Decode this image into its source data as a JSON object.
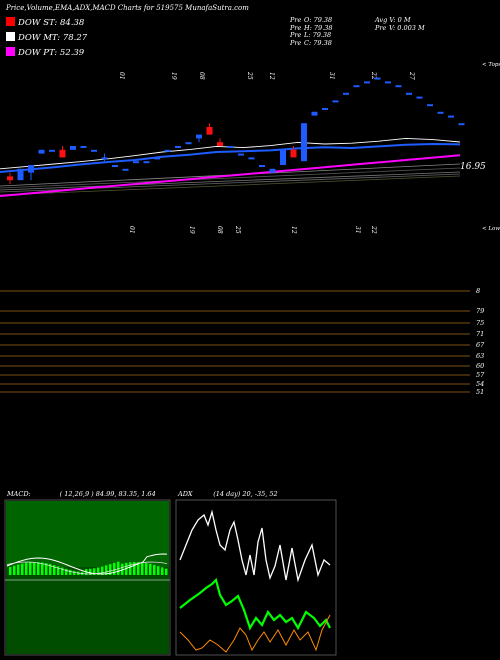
{
  "page_title": "Price,Volume,EMA,ADX,MACD Charts for 519575 MunafaSutra.com",
  "legend": [
    {
      "label": "DOW ST: 84.38",
      "color": "#ff0000"
    },
    {
      "label": "DOW MT: 78.27",
      "color": "#ffffff"
    },
    {
      "label": "DOW PT: 52.39",
      "color": "#ff00ff"
    }
  ],
  "ohlc": {
    "open": "O: 79.38",
    "high": "H: 79.38",
    "low": "L: 79.38",
    "close": "C: 79.38",
    "prefix": "Pre",
    "avg_vol": "Avg V: 0  M",
    "vol": "V: 0.003 M"
  },
  "colors": {
    "up": "#1e5cff",
    "down": "#ff1010",
    "ema_blue": "#1e5cff",
    "ema_magenta": "#ff00ff",
    "adx_green": "#00ff00",
    "adx_orange": "#ff8c00"
  },
  "chart_data": [
    {
      "type": "line",
      "panel": "upper-ema",
      "upper_label": "< Tops",
      "last_label": "16.95",
      "top_tick_labels": [
        "01",
        "19",
        "08",
        "25",
        "12",
        "31",
        "22",
        "27"
      ],
      "series": [
        {
          "color": "blue",
          "values": [
            12.0,
            12.6,
            13.2,
            13.9,
            14.5,
            15.0,
            15.8,
            16.3,
            17.0,
            17.2,
            17.4,
            17.9,
            18.2,
            18.0,
            18.4,
            18.8,
            19.0,
            18.9
          ]
        },
        {
          "color": "white",
          "values": [
            12.8,
            13.4,
            14.0,
            14.6,
            15.3,
            16.1,
            17.0,
            17.6,
            18.4,
            18.1,
            18.6,
            19.4,
            19.0,
            19.2,
            19.7,
            20.4,
            20.1,
            19.5
          ]
        },
        {
          "color": "magenta",
          "values": [
            6.0,
            6.6,
            7.2,
            7.8,
            8.4,
            9.0,
            9.6,
            10.2,
            10.8,
            11.4,
            12.0,
            12.6,
            13.2,
            13.8,
            14.4,
            15.0,
            15.6,
            16.2
          ]
        }
      ]
    },
    {
      "type": "candlestick",
      "panel": "price",
      "upper_label": "< Lows",
      "top_tick_labels": [
        "01",
        "19",
        "08",
        "25",
        "12",
        "31",
        "22",
        "27"
      ],
      "y_levels": [
        "8",
        "79",
        "75",
        "71",
        "67",
        "63",
        "60",
        "57",
        "54",
        "51"
      ],
      "ylim": [
        50,
        99
      ],
      "bars": [
        [
          1,
          72,
          73,
          70,
          71
        ],
        [
          2,
          71,
          74,
          72,
          74
        ],
        [
          3,
          73,
          75,
          71,
          75
        ],
        [
          4,
          78,
          79,
          78,
          79
        ],
        [
          5,
          79,
          79,
          79,
          79
        ],
        [
          6,
          79,
          80,
          77,
          77
        ],
        [
          7,
          79,
          80,
          79,
          80
        ],
        [
          8,
          80,
          80,
          80,
          80
        ],
        [
          9,
          79,
          79,
          79,
          79
        ],
        [
          10,
          77,
          78,
          76,
          77
        ],
        [
          11,
          75,
          75,
          75,
          75
        ],
        [
          12,
          74,
          74,
          74,
          74
        ],
        [
          13,
          76,
          76,
          76,
          76
        ],
        [
          14,
          76,
          76,
          76,
          76
        ],
        [
          15,
          77,
          77,
          77,
          77
        ],
        [
          16,
          79,
          79,
          79,
          79
        ],
        [
          17,
          80,
          80,
          80,
          80
        ],
        [
          18,
          81,
          81,
          81,
          81
        ],
        [
          19,
          82,
          83,
          81,
          83
        ],
        [
          20,
          85,
          86,
          83,
          83
        ],
        [
          21,
          81,
          82,
          80,
          80
        ],
        [
          22,
          80,
          80,
          80,
          80
        ],
        [
          23,
          78,
          78,
          78,
          78
        ],
        [
          24,
          77,
          77,
          77,
          77
        ],
        [
          25,
          75,
          75,
          75,
          75
        ],
        [
          26,
          73,
          74,
          73,
          74
        ],
        [
          27,
          75,
          79,
          75,
          79
        ],
        [
          28,
          79,
          80,
          77,
          77
        ],
        [
          29,
          76,
          86,
          76,
          86
        ],
        [
          30,
          88,
          89,
          88,
          89
        ],
        [
          31,
          90,
          90,
          90,
          90
        ],
        [
          32,
          92,
          92,
          92,
          92
        ],
        [
          33,
          94,
          94,
          94,
          94
        ],
        [
          34,
          96,
          96,
          96,
          96
        ],
        [
          35,
          97,
          97,
          97,
          97
        ],
        [
          36,
          98,
          98,
          98,
          98
        ],
        [
          37,
          97,
          97,
          97,
          97
        ],
        [
          38,
          96,
          96,
          96,
          96
        ],
        [
          39,
          94,
          94,
          94,
          94
        ],
        [
          40,
          93,
          93,
          93,
          93
        ],
        [
          41,
          91,
          91,
          91,
          91
        ],
        [
          42,
          89,
          89,
          89,
          89
        ],
        [
          43,
          88,
          88,
          88,
          88
        ],
        [
          44,
          86,
          86,
          86,
          86
        ]
      ]
    },
    {
      "type": "line",
      "panel": "macd",
      "title": "MACD:",
      "params": "( 12,26,9 ) 84.99,  83.35,  1.64"
    },
    {
      "type": "line",
      "panel": "adx",
      "title": "ADX",
      "params": "(14  day) 20,  -35,  52"
    }
  ]
}
